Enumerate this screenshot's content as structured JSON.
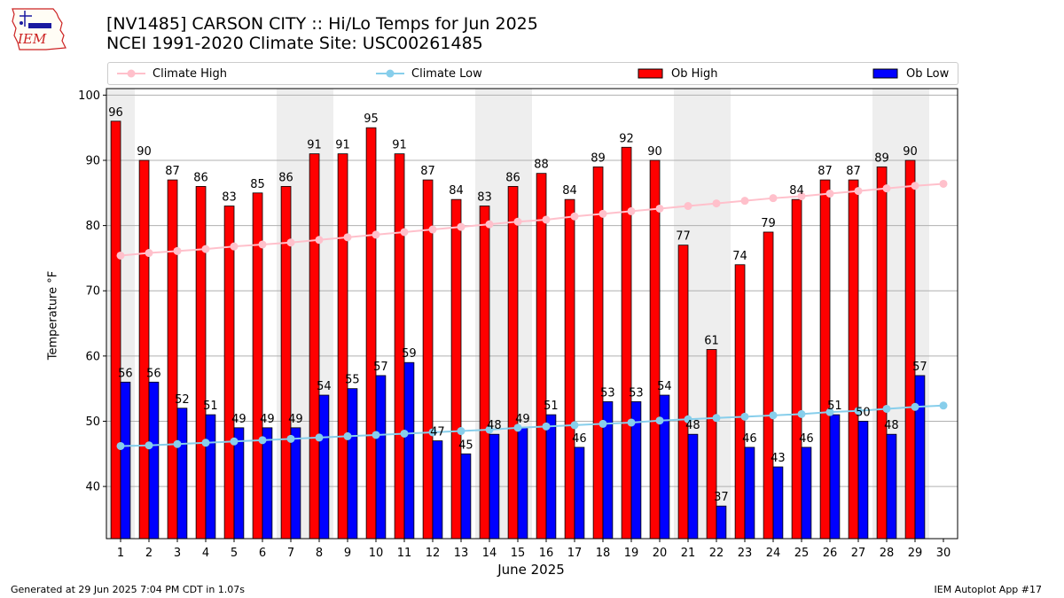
{
  "header": {
    "title_line1": "[NV1485] CARSON CITY :: Hi/Lo Temps for Jun 2025",
    "title_line2": "NCEI 1991-2020 Climate Site: USC00261485",
    "logo_text": "IEM"
  },
  "footer": {
    "generated": "Generated at 29 Jun 2025 7:04 PM CDT in 1.07s",
    "app": "IEM Autoplot App #17"
  },
  "chart_data": {
    "type": "bar",
    "xlabel": "June 2025",
    "ylabel": "Temperature °F",
    "ylim": [
      32,
      101
    ],
    "yticks": [
      40,
      50,
      60,
      70,
      80,
      90,
      100
    ],
    "grid": true,
    "legend_placement": "top",
    "weekend_shading_days": [
      1,
      7,
      8,
      14,
      15,
      21,
      22,
      28,
      29
    ],
    "categories": [
      "1",
      "2",
      "3",
      "4",
      "5",
      "6",
      "7",
      "8",
      "9",
      "10",
      "11",
      "12",
      "13",
      "14",
      "15",
      "16",
      "17",
      "18",
      "19",
      "20",
      "21",
      "22",
      "23",
      "24",
      "25",
      "26",
      "27",
      "28",
      "29",
      "30"
    ],
    "series": [
      {
        "name": "Climate High",
        "kind": "line",
        "color": "#ffc0cb",
        "values": [
          75.4,
          75.8,
          76.1,
          76.4,
          76.8,
          77.1,
          77.4,
          77.8,
          78.2,
          78.6,
          79.0,
          79.4,
          79.8,
          80.2,
          80.6,
          80.9,
          81.4,
          81.8,
          82.2,
          82.6,
          83.0,
          83.4,
          83.8,
          84.2,
          84.5,
          84.9,
          85.3,
          85.7,
          86.1,
          86.4
        ]
      },
      {
        "name": "Climate Low",
        "kind": "line",
        "color": "#87ceeb",
        "values": [
          46.2,
          46.3,
          46.5,
          46.7,
          46.9,
          47.1,
          47.3,
          47.5,
          47.7,
          47.9,
          48.1,
          48.3,
          48.5,
          48.7,
          49.0,
          49.2,
          49.4,
          49.6,
          49.8,
          50.1,
          50.3,
          50.5,
          50.7,
          50.9,
          51.1,
          51.4,
          51.6,
          51.9,
          52.2,
          52.4
        ]
      },
      {
        "name": "Ob High",
        "kind": "bar",
        "color": "#ff0000",
        "values": [
          96,
          90,
          87,
          86,
          83,
          85,
          86,
          91,
          91,
          95,
          91,
          87,
          84,
          83,
          86,
          88,
          84,
          89,
          92,
          90,
          77,
          61,
          74,
          79,
          84,
          87,
          87,
          89,
          90,
          null
        ]
      },
      {
        "name": "Ob Low",
        "kind": "bar",
        "color": "#0000ff",
        "values": [
          56,
          56,
          52,
          51,
          49,
          49,
          49,
          54,
          55,
          57,
          59,
          47,
          45,
          48,
          49,
          51,
          46,
          53,
          53,
          54,
          48,
          37,
          46,
          43,
          46,
          51,
          50,
          48,
          57,
          null
        ]
      }
    ]
  }
}
